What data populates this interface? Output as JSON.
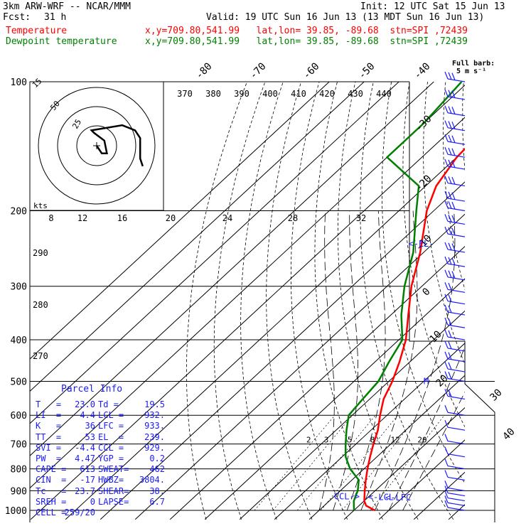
{
  "header": {
    "model": "3km ARW-WRF -- NCAR/MMM",
    "init": "Init: 12 UTC Sat 15 Jun 13",
    "fcst_label": "Fcst:",
    "fcst_value": "31 h",
    "valid": "Valid: 19 UTC Sun 16 Jun 13 (13 MDT Sun 16 Jun 13)",
    "temp_label": "Temperature",
    "temp_info": "x,y=709.80,541.99   lat,lon= 39.85, -89.68  stn=SPI ,72439",
    "dew_label": "Dewpoint temperature",
    "dew_info": "x,y=709.80,541.99   lat,lon= 39.85, -89.68  stn=SPI ,72439",
    "full_barb": "Full barb:",
    "full_barb_units": "5 m s⁻¹"
  },
  "colors": {
    "temperature": "#ff0000",
    "dewpoint": "#008000",
    "panel_text": "#1a1aff",
    "barb": "#1a1aff",
    "isobar": "#000000"
  },
  "parcel_info": {
    "title": "Parcel Info",
    "rows": [
      {
        "l1": "T   =",
        "v1": "23.0",
        "l2": "Td =",
        "v2": "19.5"
      },
      {
        "l1": "LI  =",
        "v1": "-4.4",
        "l2": "LCL =",
        "v2": "932."
      },
      {
        "l1": "K   =",
        "v1": "36",
        "l2": "LFC =",
        "v2": "933."
      },
      {
        "l1": "TT  =",
        "v1": "53",
        "l2": "EL  =",
        "v2": "239."
      },
      {
        "l1": "SVI =",
        "v1": "-4.4",
        "l2": "CCL =",
        "v2": "929."
      },
      {
        "l1": "PW  =",
        "v1": "4.47",
        "l2": "YGP =",
        "v2": "0.2"
      },
      {
        "l1": "CAPE =",
        "v1": "613",
        "l2": "SWEAT=",
        "v2": "462"
      },
      {
        "l1": "CIN  =",
        "v1": "-17",
        "l2": "HWBZ=",
        "v2": "3804."
      },
      {
        "l1": "Tc   =",
        "v1": "23.7",
        "l2": "SHEAR=",
        "v2": "38."
      },
      {
        "l1": "SREH =",
        "v1": "0",
        "l2": "LAPSE=",
        "v2": "6.7"
      },
      {
        "l1": "CELL =",
        "v1": "259/20",
        "l2": "",
        "v2": ""
      }
    ]
  },
  "chart_data": {
    "type": "line",
    "xlabel": "",
    "ylabel": "",
    "pressure_ticks": [
      100,
      200,
      300,
      400,
      500,
      600,
      700,
      800,
      900,
      1000
    ],
    "isotherm_labels_top": [
      -80,
      -70,
      -60,
      -50,
      -40
    ],
    "isotherm_labels_right": [
      -30,
      -20,
      -10,
      0,
      10,
      20,
      30,
      40
    ],
    "theta_labels": [
      370,
      380,
      390,
      400,
      410,
      420,
      430,
      440
    ],
    "theta_labels_left": [
      290,
      280,
      270
    ],
    "mixing_ratio_labels": [
      "2",
      "3",
      "5",
      "8",
      "12",
      "20"
    ],
    "hodo_rings": [
      "15",
      "50",
      "25"
    ],
    "hodo_speed_labels": [
      "8",
      "12",
      "16",
      "20",
      "24",
      "28",
      "32"
    ],
    "hodo_units": "kts",
    "series": [
      {
        "name": "Temperature",
        "points": [
          {
            "p": 1000,
            "t": 26
          },
          {
            "p": 975,
            "t": 22
          },
          {
            "p": 950,
            "t": 20
          },
          {
            "p": 900,
            "t": 17
          },
          {
            "p": 850,
            "t": 14
          },
          {
            "p": 800,
            "t": 11
          },
          {
            "p": 750,
            "t": 8
          },
          {
            "p": 700,
            "t": 5
          },
          {
            "p": 650,
            "t": 2
          },
          {
            "p": 600,
            "t": -2
          },
          {
            "p": 550,
            "t": -6
          },
          {
            "p": 500,
            "t": -9
          },
          {
            "p": 450,
            "t": -13
          },
          {
            "p": 400,
            "t": -18
          },
          {
            "p": 350,
            "t": -25
          },
          {
            "p": 300,
            "t": -33
          },
          {
            "p": 250,
            "t": -41
          },
          {
            "p": 200,
            "t": -52
          },
          {
            "p": 175,
            "t": -57
          },
          {
            "p": 150,
            "t": -60
          },
          {
            "p": 125,
            "t": -61
          },
          {
            "p": 100,
            "t": -64
          }
        ]
      },
      {
        "name": "Dewpoint temperature",
        "points": [
          {
            "p": 1000,
            "t": 20
          },
          {
            "p": 950,
            "t": 17
          },
          {
            "p": 900,
            "t": 15
          },
          {
            "p": 850,
            "t": 12
          },
          {
            "p": 800,
            "t": 6
          },
          {
            "p": 750,
            "t": 1
          },
          {
            "p": 700,
            "t": -3
          },
          {
            "p": 650,
            "t": -7
          },
          {
            "p": 600,
            "t": -11
          },
          {
            "p": 550,
            "t": -12
          },
          {
            "p": 500,
            "t": -13
          },
          {
            "p": 450,
            "t": -16
          },
          {
            "p": 400,
            "t": -19
          },
          {
            "p": 350,
            "t": -27
          },
          {
            "p": 300,
            "t": -35
          },
          {
            "p": 250,
            "t": -43
          },
          {
            "p": 200,
            "t": -55
          },
          {
            "p": 175,
            "t": -62
          },
          {
            "p": 150,
            "t": -80
          },
          {
            "p": 125,
            "t": -80
          },
          {
            "p": 100,
            "t": -82
          }
        ]
      }
    ],
    "annotations": [
      {
        "text": "<-EL-",
        "p": 239,
        "t": -47
      },
      {
        "text": "CCL->",
        "p": 929,
        "t": 10
      },
      {
        "text": "<-LCL",
        "p": 932,
        "t": 20
      },
      {
        "text": "<-LFC",
        "p": 933,
        "t": 25
      },
      {
        "text": "M",
        "p": 500,
        "t": 0
      }
    ],
    "hodograph_points": [
      [
        0,
        0
      ],
      [
        2,
        3
      ],
      [
        4,
        3
      ],
      [
        3,
        -2
      ],
      [
        -1,
        -5
      ],
      [
        -2,
        -6
      ],
      [
        10,
        -8
      ],
      [
        15,
        -6
      ],
      [
        17,
        -3
      ],
      [
        17,
        5
      ],
      [
        18,
        8
      ]
    ],
    "wind_levels_hpa": [
      100,
      110,
      120,
      130,
      140,
      150,
      160,
      175,
      190,
      200,
      215,
      230,
      250,
      270,
      290,
      310,
      330,
      350,
      375,
      400,
      425,
      450,
      475,
      500,
      550,
      600,
      650,
      700,
      750,
      800,
      850,
      900,
      925,
      950,
      975,
      1000
    ]
  }
}
